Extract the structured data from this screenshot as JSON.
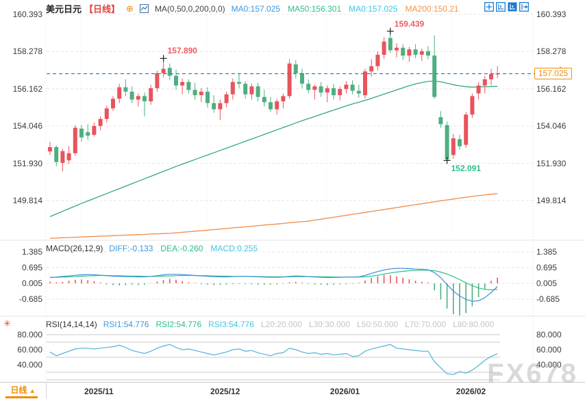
{
  "header": {
    "symbol": "美元日元",
    "period": "【日线】",
    "ma_settings": "MA(0,50,0,200,0,0)",
    "ma_values": [
      {
        "label": "MA0:157.025",
        "color": "#3a97dd"
      },
      {
        "label": "MA50:156.301",
        "color": "#2cbf85"
      },
      {
        "label": "MA0:157.025",
        "color": "#3ec6e0"
      },
      {
        "label": "MA200:150.21",
        "color": "#f09743"
      }
    ]
  },
  "toolbar": {
    "icons": [
      "move-icon",
      "axis-scale-icon",
      "axis-scale-filled-icon",
      "pan-right-icon"
    ]
  },
  "macd_header": {
    "title": "MACD(26,12,9)",
    "values": [
      {
        "label": "DIFF:-0.133",
        "color": "#3a97dd"
      },
      {
        "label": "DEA:-0.260",
        "color": "#2cbf85"
      },
      {
        "label": "MACD:0.255",
        "color": "#3ec6e0"
      }
    ]
  },
  "rsi_header": {
    "title": "RSI(14,14,14)",
    "values": [
      {
        "label": "RSI1:54.776",
        "color": "#3a97dd"
      },
      {
        "label": "RSI2:54.776",
        "color": "#2cbf85"
      },
      {
        "label": "RSI3:54.776",
        "color": "#3ec6e0"
      },
      {
        "label": "L20:20.000",
        "color": "#c4c4c4"
      },
      {
        "label": "L30:30.000",
        "color": "#c4c4c4"
      },
      {
        "label": "L50:50.000",
        "color": "#c4c4c4"
      },
      {
        "label": "L70:70.000",
        "color": "#c4c4c4"
      },
      {
        "label": "L80:80.000",
        "color": "#c4c4c4"
      }
    ]
  },
  "bottom": {
    "period_button": "日线",
    "period_arrow": "▲"
  },
  "watermark": "FX678",
  "current_price": "157.025",
  "colors": {
    "up": "#e8545c",
    "down": "#4fae81",
    "ma50": "#33a87a",
    "ma200": "#ef8b45",
    "diff": "#3a8fe0",
    "dea": "#2cbf85",
    "rsi": "#4fb3d9",
    "price_line": "#1d86e0",
    "tag": "#f08c00",
    "grid": "#e6e6e6",
    "rsi_grid": "#c8c8c8",
    "ann_high": "#ef5b64",
    "ann_low": "#2cbf85"
  },
  "chart_data": [
    {
      "type": "candlestick",
      "title": "美元日元 日线 (USD/JPY daily)",
      "price_axis_labels": [
        "160.393",
        "158.278",
        "156.162",
        "154.046",
        "151.930",
        "149.814"
      ],
      "price_axis_values": [
        160.393,
        158.278,
        156.162,
        154.046,
        151.93,
        149.814
      ],
      "ylim": [
        148.6,
        161.2
      ],
      "current_price": 157.025,
      "months": [
        {
          "label": "2025/11",
          "index": 5
        },
        {
          "label": "2025/12",
          "index": 25
        },
        {
          "label": "2026/01",
          "index": 44
        },
        {
          "label": "2026/02",
          "index": 64
        }
      ],
      "annotations": [
        {
          "index": 18,
          "price": 157.89,
          "text": "157.890",
          "side": "high"
        },
        {
          "index": 54,
          "price": 159.439,
          "text": "159.439",
          "side": "high"
        },
        {
          "index": 63,
          "price": 152.091,
          "text": "152.091",
          "side": "low"
        }
      ],
      "candles": [
        [
          152.6,
          153.15,
          152.4,
          152.85
        ],
        [
          152.85,
          152.95,
          151.75,
          152.0
        ],
        [
          151.95,
          152.75,
          151.47,
          152.62
        ],
        [
          152.1,
          152.9,
          151.9,
          152.5
        ],
        [
          152.5,
          154.1,
          152.35,
          153.95
        ],
        [
          153.9,
          154.1,
          153.15,
          153.4
        ],
        [
          153.7,
          154.15,
          153.25,
          153.5
        ],
        [
          153.55,
          154.25,
          153.45,
          154.05
        ],
        [
          154.05,
          154.6,
          153.8,
          154.45
        ],
        [
          154.45,
          155.2,
          154.25,
          155.05
        ],
        [
          155.05,
          155.75,
          154.9,
          155.6
        ],
        [
          155.6,
          156.45,
          155.35,
          156.25
        ],
        [
          156.25,
          156.7,
          155.75,
          156.0
        ],
        [
          156.0,
          156.3,
          155.35,
          155.55
        ],
        [
          155.55,
          155.9,
          155.15,
          155.75
        ],
        [
          155.75,
          155.95,
          154.6,
          155.45
        ],
        [
          155.45,
          156.4,
          155.25,
          156.2
        ],
        [
          156.2,
          157.2,
          156.0,
          157.05
        ],
        [
          157.05,
          157.89,
          156.8,
          157.3
        ],
        [
          157.35,
          157.6,
          156.65,
          156.9
        ],
        [
          156.9,
          157.25,
          156.1,
          156.35
        ],
        [
          156.35,
          156.75,
          155.85,
          156.55
        ],
        [
          156.55,
          156.7,
          155.9,
          156.1
        ],
        [
          156.1,
          156.5,
          155.55,
          155.8
        ],
        [
          155.8,
          156.2,
          155.4,
          156.0
        ],
        [
          156.0,
          156.25,
          155.1,
          155.35
        ],
        [
          155.35,
          155.8,
          154.8,
          155.0
        ],
        [
          155.0,
          155.55,
          154.4,
          155.35
        ],
        [
          155.35,
          156.0,
          155.1,
          155.85
        ],
        [
          155.85,
          156.75,
          155.55,
          156.55
        ],
        [
          156.55,
          157.0,
          156.2,
          156.45
        ],
        [
          156.45,
          156.6,
          155.6,
          155.85
        ],
        [
          155.85,
          156.45,
          155.55,
          156.3
        ],
        [
          156.3,
          156.5,
          155.45,
          155.7
        ],
        [
          155.7,
          156.1,
          155.15,
          155.4
        ],
        [
          155.4,
          155.7,
          154.85,
          155.0
        ],
        [
          155.0,
          155.6,
          154.7,
          155.45
        ],
        [
          155.45,
          155.9,
          155.05,
          155.75
        ],
        [
          155.75,
          157.85,
          155.6,
          157.6
        ],
        [
          157.55,
          157.8,
          156.75,
          157.05
        ],
        [
          157.05,
          157.3,
          156.2,
          156.45
        ],
        [
          156.45,
          156.7,
          155.9,
          156.1
        ],
        [
          156.1,
          156.4,
          155.55,
          156.3
        ],
        [
          156.3,
          156.55,
          155.7,
          155.95
        ],
        [
          155.95,
          156.35,
          155.4,
          156.2
        ],
        [
          156.2,
          156.45,
          155.55,
          155.8
        ],
        [
          155.8,
          156.3,
          155.5,
          156.15
        ],
        [
          156.15,
          156.6,
          155.9,
          156.4
        ],
        [
          156.4,
          156.65,
          155.85,
          156.05
        ],
        [
          156.05,
          156.4,
          155.65,
          155.9
        ],
        [
          155.8,
          157.3,
          155.6,
          157.15
        ],
        [
          157.15,
          157.85,
          156.85,
          157.45
        ],
        [
          157.45,
          158.3,
          157.2,
          158.1
        ],
        [
          158.1,
          159.1,
          157.85,
          158.85
        ],
        [
          159.05,
          159.439,
          158.2,
          158.35
        ],
        [
          158.35,
          158.75,
          157.95,
          158.5
        ],
        [
          158.5,
          158.7,
          157.8,
          158.05
        ],
        [
          158.05,
          158.55,
          157.7,
          158.4
        ],
        [
          158.4,
          158.7,
          157.9,
          158.1
        ],
        [
          158.1,
          158.45,
          157.75,
          158.3
        ],
        [
          158.3,
          158.6,
          157.85,
          158.05
        ],
        [
          158.05,
          159.2,
          155.6,
          155.7
        ],
        [
          154.55,
          154.9,
          153.95,
          154.15
        ],
        [
          154.1,
          154.3,
          152.091,
          152.15
        ],
        [
          152.4,
          153.6,
          152.2,
          153.35
        ],
        [
          153.3,
          153.55,
          152.7,
          152.9
        ],
        [
          152.98,
          154.85,
          152.8,
          154.7
        ],
        [
          154.7,
          155.9,
          154.5,
          155.75
        ],
        [
          155.9,
          156.55,
          155.55,
          156.35
        ],
        [
          156.35,
          156.9,
          155.9,
          156.7
        ],
        [
          156.7,
          157.3,
          156.35,
          157.0
        ],
        [
          157.0,
          157.45,
          156.78,
          157.03
        ]
      ],
      "ma50": [
        148.9,
        149.05,
        149.2,
        149.35,
        149.5,
        149.65,
        149.79,
        149.93,
        150.07,
        150.21,
        150.35,
        150.49,
        150.63,
        150.77,
        150.91,
        151.05,
        151.19,
        151.33,
        151.47,
        151.61,
        151.75,
        151.88,
        152.01,
        152.14,
        152.27,
        152.4,
        152.53,
        152.66,
        152.79,
        152.92,
        153.05,
        153.18,
        153.31,
        153.44,
        153.57,
        153.7,
        153.83,
        153.96,
        154.09,
        154.22,
        154.35,
        154.47,
        154.59,
        154.71,
        154.83,
        154.95,
        155.07,
        155.19,
        155.3,
        155.4,
        155.5,
        155.62,
        155.74,
        155.86,
        155.98,
        156.1,
        156.22,
        156.34,
        156.44,
        156.52,
        156.58,
        156.6,
        156.56,
        156.48,
        156.4,
        156.33,
        156.28,
        156.26,
        156.27,
        156.28,
        156.29,
        156.3
      ],
      "ma200": [
        147.67,
        147.68,
        147.7,
        147.71,
        147.73,
        147.74,
        147.76,
        147.77,
        147.79,
        147.8,
        147.82,
        147.83,
        147.85,
        147.86,
        147.88,
        147.89,
        147.91,
        147.92,
        147.94,
        147.95,
        147.98,
        148.01,
        148.04,
        148.07,
        148.1,
        148.13,
        148.16,
        148.19,
        148.22,
        148.26,
        148.29,
        148.32,
        148.35,
        148.38,
        148.42,
        148.45,
        148.48,
        148.51,
        148.55,
        148.58,
        148.61,
        148.64,
        148.7,
        148.75,
        148.81,
        148.86,
        148.92,
        148.97,
        149.03,
        149.08,
        149.14,
        149.19,
        149.25,
        149.3,
        149.36,
        149.41,
        149.47,
        149.52,
        149.58,
        149.63,
        149.69,
        149.74,
        149.8,
        149.85,
        149.9,
        149.95,
        150.0,
        150.05,
        150.09,
        150.13,
        150.17,
        150.21
      ]
    },
    {
      "type": "macd",
      "title": "MACD(26,12,9)",
      "axis_labels": [
        "1.385",
        "0.695",
        "0.005",
        "-0.685"
      ],
      "axis_values": [
        1.385,
        0.695,
        0.005,
        -0.685
      ],
      "diff": [
        0.26,
        0.28,
        0.31,
        0.33,
        0.36,
        0.38,
        0.39,
        0.38,
        0.36,
        0.34,
        0.32,
        0.31,
        0.3,
        0.3,
        0.29,
        0.29,
        0.31,
        0.34,
        0.38,
        0.4,
        0.4,
        0.39,
        0.37,
        0.35,
        0.33,
        0.31,
        0.3,
        0.29,
        0.29,
        0.3,
        0.31,
        0.31,
        0.3,
        0.29,
        0.28,
        0.27,
        0.27,
        0.28,
        0.31,
        0.33,
        0.32,
        0.3,
        0.28,
        0.27,
        0.26,
        0.26,
        0.27,
        0.28,
        0.28,
        0.29,
        0.35,
        0.44,
        0.52,
        0.59,
        0.64,
        0.66,
        0.66,
        0.65,
        0.63,
        0.62,
        0.6,
        0.48,
        0.25,
        -0.05,
        -0.33,
        -0.55,
        -0.7,
        -0.78,
        -0.76,
        -0.62,
        -0.4,
        -0.133
      ],
      "dea": [
        0.27,
        0.27,
        0.28,
        0.29,
        0.3,
        0.32,
        0.33,
        0.34,
        0.35,
        0.35,
        0.34,
        0.34,
        0.33,
        0.32,
        0.32,
        0.31,
        0.31,
        0.31,
        0.32,
        0.33,
        0.34,
        0.35,
        0.35,
        0.35,
        0.34,
        0.34,
        0.33,
        0.32,
        0.32,
        0.31,
        0.31,
        0.31,
        0.31,
        0.3,
        0.3,
        0.29,
        0.29,
        0.29,
        0.29,
        0.3,
        0.3,
        0.3,
        0.3,
        0.29,
        0.29,
        0.28,
        0.28,
        0.28,
        0.28,
        0.28,
        0.29,
        0.32,
        0.36,
        0.41,
        0.46,
        0.5,
        0.53,
        0.56,
        0.57,
        0.58,
        0.58,
        0.56,
        0.5,
        0.41,
        0.3,
        0.17,
        0.03,
        -0.1,
        -0.2,
        -0.26,
        -0.28,
        -0.26
      ],
      "hist": [
        0.08,
        0.05,
        0.07,
        0.12,
        0.16,
        0.18,
        0.15,
        0.1,
        0.04,
        -0.04,
        -0.07,
        -0.09,
        -0.08,
        -0.06,
        -0.07,
        -0.06,
        0.02,
        0.08,
        0.15,
        0.2,
        0.16,
        0.1,
        0.05,
        0.02,
        -0.03,
        -0.05,
        -0.07,
        -0.06,
        -0.05,
        -0.03,
        -0.02,
        -0.03,
        -0.04,
        -0.05,
        -0.06,
        -0.05,
        -0.04,
        -0.02,
        0.05,
        0.07,
        0.04,
        -0.02,
        -0.05,
        -0.06,
        -0.07,
        -0.06,
        -0.04,
        -0.03,
        -0.02,
        0.03,
        0.13,
        0.24,
        0.32,
        0.37,
        0.36,
        0.31,
        0.25,
        0.18,
        0.12,
        0.07,
        0.04,
        -0.3,
        -0.7,
        -1.1,
        -1.35,
        -1.42,
        -1.3,
        -1.0,
        -0.6,
        -0.25,
        0.12,
        0.255
      ]
    },
    {
      "type": "rsi",
      "title": "RSI(14,14,14)",
      "axis_labels": [
        "80.000",
        "60.000",
        "40.000"
      ],
      "axis_values": [
        80,
        60,
        40
      ],
      "guide_lines": [
        80,
        70,
        50,
        30,
        20
      ],
      "rsi": [
        57,
        52,
        55,
        58,
        61,
        62,
        62,
        61,
        62,
        63,
        64,
        66,
        63,
        59,
        57,
        55,
        58,
        62,
        65,
        67,
        63,
        60,
        61,
        59,
        57,
        55,
        53,
        55,
        57,
        60,
        61,
        58,
        59,
        56,
        54,
        52,
        55,
        56,
        62,
        60,
        57,
        55,
        56,
        54,
        55,
        53,
        54,
        55,
        51,
        52,
        58,
        61,
        63,
        65,
        67,
        62,
        61,
        60,
        59,
        58,
        58,
        44,
        36,
        28,
        27,
        31,
        29,
        33,
        39,
        46,
        51,
        54.78
      ]
    }
  ]
}
